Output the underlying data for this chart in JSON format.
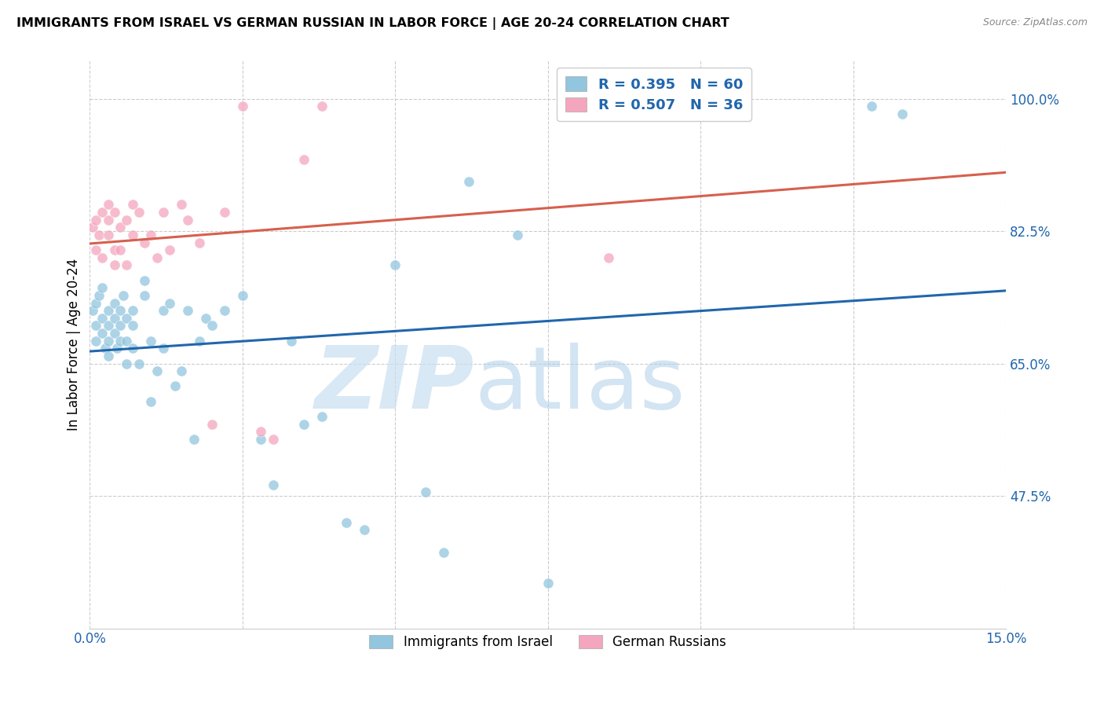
{
  "title": "IMMIGRANTS FROM ISRAEL VS GERMAN RUSSIAN IN LABOR FORCE | AGE 20-24 CORRELATION CHART",
  "source": "Source: ZipAtlas.com",
  "ylabel_label": "In Labor Force | Age 20-24",
  "israel_R": 0.395,
  "israel_N": 60,
  "german_R": 0.507,
  "german_N": 36,
  "israel_color": "#92c5de",
  "german_color": "#f4a6be",
  "israel_line_color": "#2166ac",
  "german_line_color": "#d6604d",
  "xmin": 0.0,
  "xmax": 0.15,
  "ymin": 0.3,
  "ymax": 1.05,
  "ytick_vals": [
    1.0,
    0.825,
    0.65,
    0.475
  ],
  "ytick_labels": [
    "100.0%",
    "82.5%",
    "65.0%",
    "47.5%"
  ],
  "xtick_vals": [
    0.0,
    0.15
  ],
  "xtick_labels": [
    "0.0%",
    "15.0%"
  ],
  "israel_points_x": [
    0.0005,
    0.001,
    0.001,
    0.001,
    0.0015,
    0.002,
    0.002,
    0.002,
    0.0025,
    0.003,
    0.003,
    0.003,
    0.003,
    0.004,
    0.004,
    0.004,
    0.0045,
    0.005,
    0.005,
    0.005,
    0.0055,
    0.006,
    0.006,
    0.006,
    0.007,
    0.007,
    0.007,
    0.008,
    0.009,
    0.009,
    0.01,
    0.01,
    0.011,
    0.012,
    0.012,
    0.013,
    0.014,
    0.015,
    0.016,
    0.017,
    0.018,
    0.019,
    0.02,
    0.022,
    0.025,
    0.028,
    0.03,
    0.033,
    0.035,
    0.038,
    0.042,
    0.045,
    0.05,
    0.055,
    0.058,
    0.062,
    0.07,
    0.075,
    0.128,
    0.133
  ],
  "israel_points_y": [
    0.72,
    0.7,
    0.73,
    0.68,
    0.74,
    0.71,
    0.69,
    0.75,
    0.67,
    0.7,
    0.72,
    0.68,
    0.66,
    0.71,
    0.73,
    0.69,
    0.67,
    0.7,
    0.72,
    0.68,
    0.74,
    0.65,
    0.68,
    0.71,
    0.7,
    0.72,
    0.67,
    0.65,
    0.74,
    0.76,
    0.68,
    0.6,
    0.64,
    0.72,
    0.67,
    0.73,
    0.62,
    0.64,
    0.72,
    0.55,
    0.68,
    0.71,
    0.7,
    0.72,
    0.74,
    0.55,
    0.49,
    0.68,
    0.57,
    0.58,
    0.44,
    0.43,
    0.78,
    0.48,
    0.4,
    0.89,
    0.82,
    0.36,
    0.99,
    0.98
  ],
  "german_points_x": [
    0.0005,
    0.001,
    0.001,
    0.0015,
    0.002,
    0.002,
    0.003,
    0.003,
    0.003,
    0.004,
    0.004,
    0.004,
    0.005,
    0.005,
    0.006,
    0.006,
    0.007,
    0.007,
    0.008,
    0.009,
    0.01,
    0.011,
    0.012,
    0.013,
    0.015,
    0.016,
    0.018,
    0.02,
    0.022,
    0.025,
    0.028,
    0.03,
    0.035,
    0.038,
    0.085,
    0.09
  ],
  "german_points_y": [
    0.83,
    0.84,
    0.8,
    0.82,
    0.79,
    0.85,
    0.84,
    0.82,
    0.86,
    0.8,
    0.85,
    0.78,
    0.83,
    0.8,
    0.84,
    0.78,
    0.82,
    0.86,
    0.85,
    0.81,
    0.82,
    0.79,
    0.85,
    0.8,
    0.86,
    0.84,
    0.81,
    0.57,
    0.85,
    0.99,
    0.56,
    0.55,
    0.92,
    0.99,
    0.79,
    0.99
  ]
}
